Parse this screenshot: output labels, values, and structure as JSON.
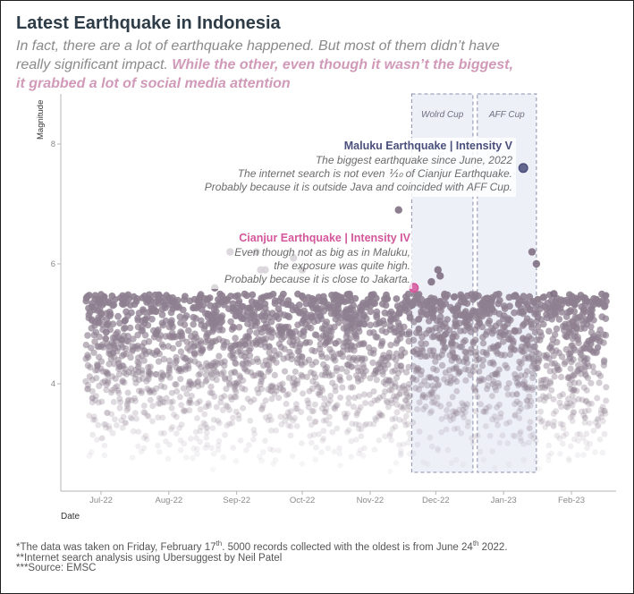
{
  "header": {
    "title": "Latest Earthquake in Indonesia",
    "subtitle_plain": "In fact, there are a lot of earthquake happened. But most of them didn’t have really significant impact. ",
    "subtitle_highlight": "While the other, even though it wasn’t the biggest, it grabbed a lot of social media attention"
  },
  "chart_data": {
    "type": "scatter",
    "title": "Latest Earthquake in Indonesia",
    "xlabel": "Date",
    "ylabel": "Magnitude",
    "xlim": [
      "2022-06-24",
      "2023-02-17"
    ],
    "ylim": [
      2.5,
      9
    ],
    "x_ticks": [
      "Jul-22",
      "Aug-22",
      "Sep-22",
      "Oct-22",
      "Nov-22",
      "Dec-22",
      "Jan-23",
      "Feb-23"
    ],
    "x_tick_dates": [
      "2022-07-01",
      "2022-08-01",
      "2022-09-01",
      "2022-10-01",
      "2022-11-01",
      "2022-12-01",
      "2023-01-01",
      "2023-02-01"
    ],
    "y_ticks": [
      4,
      6,
      8
    ],
    "background_points": {
      "count": 5000,
      "date_range": [
        "2022-06-24",
        "2023-02-17"
      ],
      "magnitude_range": [
        2.5,
        5.5
      ],
      "color": "#8e7f90"
    },
    "notable_points": [
      {
        "date": "2022-08-22",
        "magnitude": 5.6
      },
      {
        "date": "2022-08-29",
        "magnitude": 6.2
      },
      {
        "date": "2022-09-10",
        "magnitude": 6.2
      },
      {
        "date": "2022-09-12",
        "magnitude": 5.9
      },
      {
        "date": "2022-09-14",
        "magnitude": 5.9
      },
      {
        "date": "2022-09-27",
        "magnitude": 6.1
      },
      {
        "date": "2022-10-01",
        "magnitude": 5.9
      },
      {
        "date": "2022-11-14",
        "magnitude": 6.9
      },
      {
        "date": "2022-11-29",
        "magnitude": 5.7
      },
      {
        "date": "2022-12-02",
        "magnitude": 5.9
      },
      {
        "date": "2022-12-03",
        "magnitude": 5.8
      },
      {
        "date": "2023-01-14",
        "magnitude": 6.2
      },
      {
        "date": "2023-01-16",
        "magnitude": 6.0
      },
      {
        "date": "2023-01-24",
        "magnitude": 5.5
      }
    ],
    "highlights": [
      {
        "name": "Cianjur Earthquake",
        "date": "2022-11-21",
        "magnitude": 5.6,
        "label": "Cianjur Earthquake | Intensity IV",
        "notes": [
          "Even though not as big as in Maluku,",
          "the exposure was quite high.",
          "Probably because it is close to Jakarta."
        ],
        "color": "#d4569b"
      },
      {
        "name": "Maluku Earthquake",
        "date": "2023-01-10",
        "magnitude": 7.6,
        "label": "Maluku Earthquake | Intensity V",
        "notes": [
          "The biggest earthquake since June, 2022",
          "The internet search is not even ⅒ of Cianjur Earthquake.",
          "Probably because it is outside Java and coincided with AFF Cup."
        ],
        "color": "#4a4f7c"
      }
    ],
    "periods": [
      {
        "label": "Wolrd Cup",
        "start": "2022-11-20",
        "end": "2022-12-18"
      },
      {
        "label": "AFF Cup",
        "start": "2022-12-20",
        "end": "2023-01-16"
      }
    ],
    "colors": {
      "points": "#8e7f90",
      "band_fill": "#eef0f8",
      "band_stroke": "#8a8fa8",
      "axis": "#b5b5b5"
    }
  },
  "footer": {
    "line1_a": "*The data was taken on Friday, February 17",
    "line1_sup1": "th",
    "line1_b": ". 5000 records collected with the oldest is from June 24",
    "line1_sup2": "th",
    "line1_c": " 2022.",
    "line2": "**Internet search analysis using Ubersuggest by Neil Patel",
    "line3": "***Source: EMSC"
  }
}
